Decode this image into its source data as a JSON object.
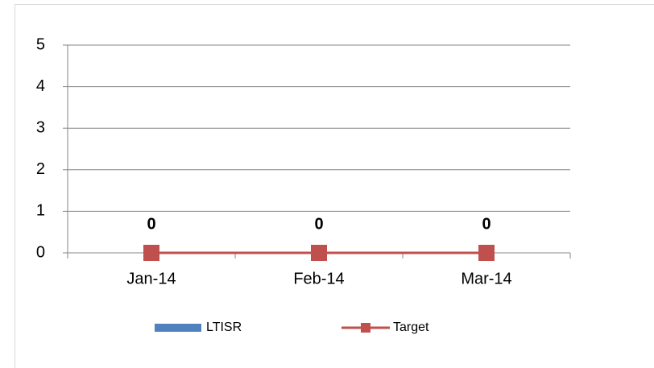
{
  "chart_data": {
    "type": "bar",
    "categories": [
      "Jan-14",
      "Feb-14",
      "Mar-14"
    ],
    "series": [
      {
        "name": "LTISR",
        "type": "bar",
        "color": "#4f81bd",
        "values": [
          0,
          0,
          0
        ]
      },
      {
        "name": "Target",
        "type": "line",
        "color": "#c0504d",
        "values": [
          0,
          0,
          0
        ]
      }
    ],
    "ylim": [
      0,
      5
    ],
    "yticks": [
      0,
      1,
      2,
      3,
      4,
      5
    ],
    "grid": true,
    "legend": "bottom"
  }
}
